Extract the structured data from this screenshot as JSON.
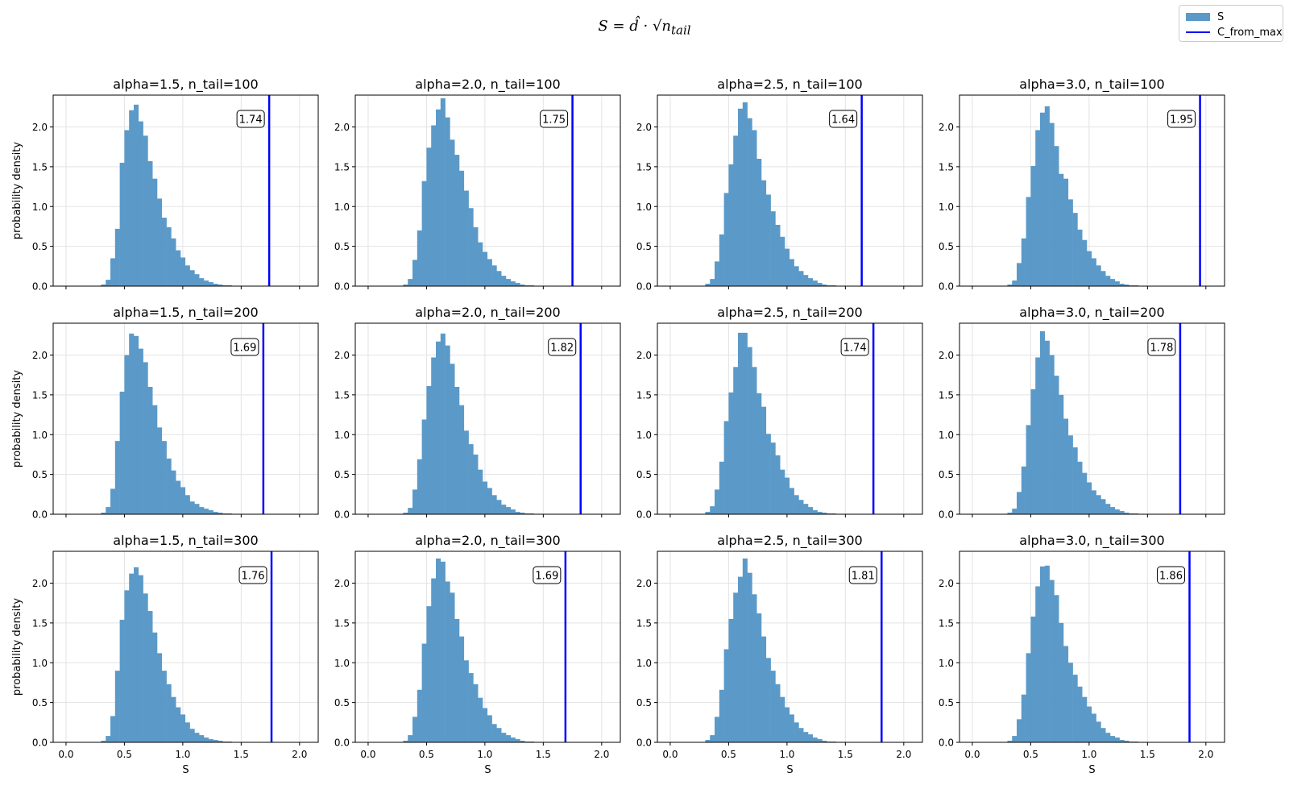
{
  "figure": {
    "title_main": "S = d̂ · √n",
    "title_sub": "tail",
    "legend": [
      {
        "label": "S",
        "type": "bar",
        "color": "#5b9ac8"
      },
      {
        "label": "C_from_max",
        "type": "line",
        "color": "#0000ff"
      }
    ],
    "ylabel": "probability density",
    "xlabel": "S"
  },
  "chart_data": [
    {
      "type": "bar",
      "title": "alpha=1.5, n_tail=100",
      "threshold": 1.74,
      "threshold_label": "1.74",
      "xlim": [
        -0.11,
        2.16
      ],
      "ylim": [
        0,
        2.4
      ],
      "yticks": [
        0,
        0.5,
        1.0,
        1.5,
        2.0
      ],
      "bin_start": 0.3,
      "bin_width": 0.04,
      "values": [
        0.02,
        0.08,
        0.35,
        0.72,
        1.55,
        1.96,
        2.21,
        2.28,
        2.07,
        1.89,
        1.57,
        1.35,
        1.1,
        0.86,
        0.74,
        0.6,
        0.45,
        0.36,
        0.26,
        0.2,
        0.15,
        0.1,
        0.07,
        0.05,
        0.03,
        0.02,
        0.01,
        0.01
      ]
    },
    {
      "type": "bar",
      "title": "alpha=2.0, n_tail=100",
      "threshold": 1.75,
      "threshold_label": "1.75",
      "xlim": [
        -0.11,
        2.16
      ],
      "ylim": [
        0,
        2.4
      ],
      "yticks": [
        0,
        0.5,
        1.0,
        1.5,
        2.0
      ],
      "bin_start": 0.3,
      "bin_width": 0.04,
      "values": [
        0.02,
        0.09,
        0.33,
        0.7,
        1.32,
        1.74,
        2.02,
        2.22,
        2.36,
        2.12,
        1.84,
        1.65,
        1.45,
        1.2,
        0.98,
        0.74,
        0.55,
        0.43,
        0.34,
        0.26,
        0.19,
        0.13,
        0.09,
        0.06,
        0.04,
        0.02,
        0.01,
        0.01
      ]
    },
    {
      "type": "bar",
      "title": "alpha=2.5, n_tail=100",
      "threshold": 1.64,
      "threshold_label": "1.64",
      "xlim": [
        -0.11,
        2.16
      ],
      "ylim": [
        0,
        2.4
      ],
      "yticks": [
        0,
        0.5,
        1.0,
        1.5,
        2.0
      ],
      "bin_start": 0.3,
      "bin_width": 0.04,
      "values": [
        0.03,
        0.09,
        0.31,
        0.65,
        1.17,
        1.53,
        1.89,
        2.23,
        2.31,
        2.11,
        1.96,
        1.6,
        1.33,
        1.15,
        0.94,
        0.77,
        0.62,
        0.47,
        0.34,
        0.25,
        0.19,
        0.14,
        0.1,
        0.07,
        0.04,
        0.02,
        0.01,
        0.01
      ]
    },
    {
      "type": "bar",
      "title": "alpha=3.0, n_tail=100",
      "threshold": 1.95,
      "threshold_label": "1.95",
      "xlim": [
        -0.11,
        2.16
      ],
      "ylim": [
        0,
        2.4
      ],
      "yticks": [
        0,
        0.5,
        1.0,
        1.5,
        2.0
      ],
      "bin_start": 0.3,
      "bin_width": 0.04,
      "values": [
        0.02,
        0.07,
        0.29,
        0.6,
        1.12,
        1.51,
        1.96,
        2.18,
        2.26,
        2.05,
        1.76,
        1.41,
        1.35,
        1.09,
        0.92,
        0.71,
        0.58,
        0.44,
        0.35,
        0.26,
        0.19,
        0.13,
        0.09,
        0.06,
        0.03,
        0.02,
        0.01,
        0.01
      ]
    },
    {
      "type": "bar",
      "title": "alpha=1.5, n_tail=200",
      "threshold": 1.69,
      "threshold_label": "1.69",
      "xlim": [
        -0.11,
        2.16
      ],
      "ylim": [
        0,
        2.4
      ],
      "yticks": [
        0,
        0.5,
        1.0,
        1.5,
        2.0
      ],
      "bin_start": 0.3,
      "bin_width": 0.04,
      "values": [
        0.02,
        0.09,
        0.32,
        0.92,
        1.54,
        2.0,
        2.27,
        2.24,
        2.08,
        1.91,
        1.6,
        1.37,
        1.09,
        0.92,
        0.7,
        0.55,
        0.42,
        0.34,
        0.24,
        0.16,
        0.13,
        0.09,
        0.07,
        0.05,
        0.03,
        0.02,
        0.01,
        0.01
      ]
    },
    {
      "type": "bar",
      "title": "alpha=2.0, n_tail=200",
      "threshold": 1.82,
      "threshold_label": "1.82",
      "xlim": [
        -0.11,
        2.16
      ],
      "ylim": [
        0,
        2.4
      ],
      "yticks": [
        0,
        0.5,
        1.0,
        1.5,
        2.0
      ],
      "bin_start": 0.3,
      "bin_width": 0.04,
      "values": [
        0.02,
        0.08,
        0.31,
        0.69,
        1.19,
        1.61,
        1.97,
        2.17,
        2.27,
        2.12,
        1.89,
        1.6,
        1.37,
        1.05,
        0.88,
        0.75,
        0.56,
        0.41,
        0.33,
        0.24,
        0.18,
        0.12,
        0.09,
        0.06,
        0.03,
        0.02,
        0.01,
        0.01
      ]
    },
    {
      "type": "bar",
      "title": "alpha=2.5, n_tail=200",
      "threshold": 1.74,
      "threshold_label": "1.74",
      "xlim": [
        -0.11,
        2.16
      ],
      "ylim": [
        0,
        2.4
      ],
      "yticks": [
        0,
        0.5,
        1.0,
        1.5,
        2.0
      ],
      "bin_start": 0.3,
      "bin_width": 0.04,
      "values": [
        0.03,
        0.1,
        0.31,
        0.66,
        1.17,
        1.53,
        1.85,
        2.28,
        2.28,
        2.1,
        1.85,
        1.52,
        1.35,
        1.01,
        0.9,
        0.74,
        0.56,
        0.46,
        0.33,
        0.24,
        0.18,
        0.13,
        0.09,
        0.05,
        0.03,
        0.02,
        0.01,
        0.01
      ]
    },
    {
      "type": "bar",
      "title": "alpha=3.0, n_tail=200",
      "threshold": 1.78,
      "threshold_label": "1.78",
      "xlim": [
        -0.11,
        2.16
      ],
      "ylim": [
        0,
        2.4
      ],
      "yticks": [
        0,
        0.5,
        1.0,
        1.5,
        2.0
      ],
      "bin_start": 0.3,
      "bin_width": 0.04,
      "values": [
        0.02,
        0.07,
        0.28,
        0.6,
        1.12,
        1.57,
        1.97,
        2.3,
        2.18,
        2.0,
        1.74,
        1.5,
        1.2,
        0.99,
        0.84,
        0.66,
        0.52,
        0.4,
        0.3,
        0.24,
        0.19,
        0.13,
        0.09,
        0.06,
        0.04,
        0.02,
        0.01,
        0.01
      ]
    },
    {
      "type": "bar",
      "title": "alpha=1.5, n_tail=300",
      "threshold": 1.76,
      "threshold_label": "1.76",
      "xlim": [
        -0.11,
        2.16
      ],
      "ylim": [
        0,
        2.4
      ],
      "yticks": [
        0,
        0.5,
        1.0,
        1.5,
        2.0
      ],
      "bin_start": 0.3,
      "bin_width": 0.04,
      "values": [
        0.02,
        0.08,
        0.33,
        0.9,
        1.54,
        1.91,
        2.12,
        2.2,
        2.1,
        1.87,
        1.65,
        1.38,
        1.12,
        0.9,
        0.73,
        0.57,
        0.44,
        0.35,
        0.25,
        0.17,
        0.12,
        0.09,
        0.06,
        0.04,
        0.03,
        0.02,
        0.01,
        0.01
      ]
    },
    {
      "type": "bar",
      "title": "alpha=2.0, n_tail=300",
      "threshold": 1.69,
      "threshold_label": "1.69",
      "xlim": [
        -0.11,
        2.16
      ],
      "ylim": [
        0,
        2.4
      ],
      "yticks": [
        0,
        0.5,
        1.0,
        1.5,
        2.0
      ],
      "bin_start": 0.3,
      "bin_width": 0.04,
      "values": [
        0.02,
        0.09,
        0.32,
        0.66,
        1.24,
        1.71,
        2.06,
        2.31,
        2.27,
        2.02,
        1.88,
        1.55,
        1.33,
        1.03,
        0.87,
        0.73,
        0.56,
        0.43,
        0.34,
        0.23,
        0.18,
        0.12,
        0.09,
        0.06,
        0.04,
        0.02,
        0.01,
        0.01
      ]
    },
    {
      "type": "bar",
      "title": "alpha=2.5, n_tail=300",
      "threshold": 1.81,
      "threshold_label": "1.81",
      "xlim": [
        -0.11,
        2.16
      ],
      "ylim": [
        0,
        2.4
      ],
      "yticks": [
        0,
        0.5,
        1.0,
        1.5,
        2.0
      ],
      "bin_start": 0.3,
      "bin_width": 0.04,
      "values": [
        0.03,
        0.09,
        0.32,
        0.66,
        1.17,
        1.55,
        1.88,
        2.08,
        2.31,
        2.13,
        1.86,
        1.62,
        1.33,
        1.06,
        0.9,
        0.73,
        0.57,
        0.44,
        0.35,
        0.25,
        0.18,
        0.13,
        0.1,
        0.06,
        0.04,
        0.02,
        0.01,
        0.01
      ]
    },
    {
      "type": "bar",
      "title": "alpha=3.0, n_tail=300",
      "threshold": 1.86,
      "threshold_label": "1.86",
      "xlim": [
        -0.11,
        2.16
      ],
      "ylim": [
        0,
        2.4
      ],
      "yticks": [
        0,
        0.5,
        1.0,
        1.5,
        2.0
      ],
      "bin_start": 0.3,
      "bin_width": 0.04,
      "values": [
        0.02,
        0.08,
        0.29,
        0.6,
        1.12,
        1.58,
        1.96,
        2.21,
        2.22,
        2.04,
        1.85,
        1.5,
        1.21,
        1.0,
        0.85,
        0.7,
        0.57,
        0.45,
        0.36,
        0.26,
        0.18,
        0.12,
        0.08,
        0.06,
        0.03,
        0.02,
        0.01,
        0.01
      ]
    }
  ]
}
